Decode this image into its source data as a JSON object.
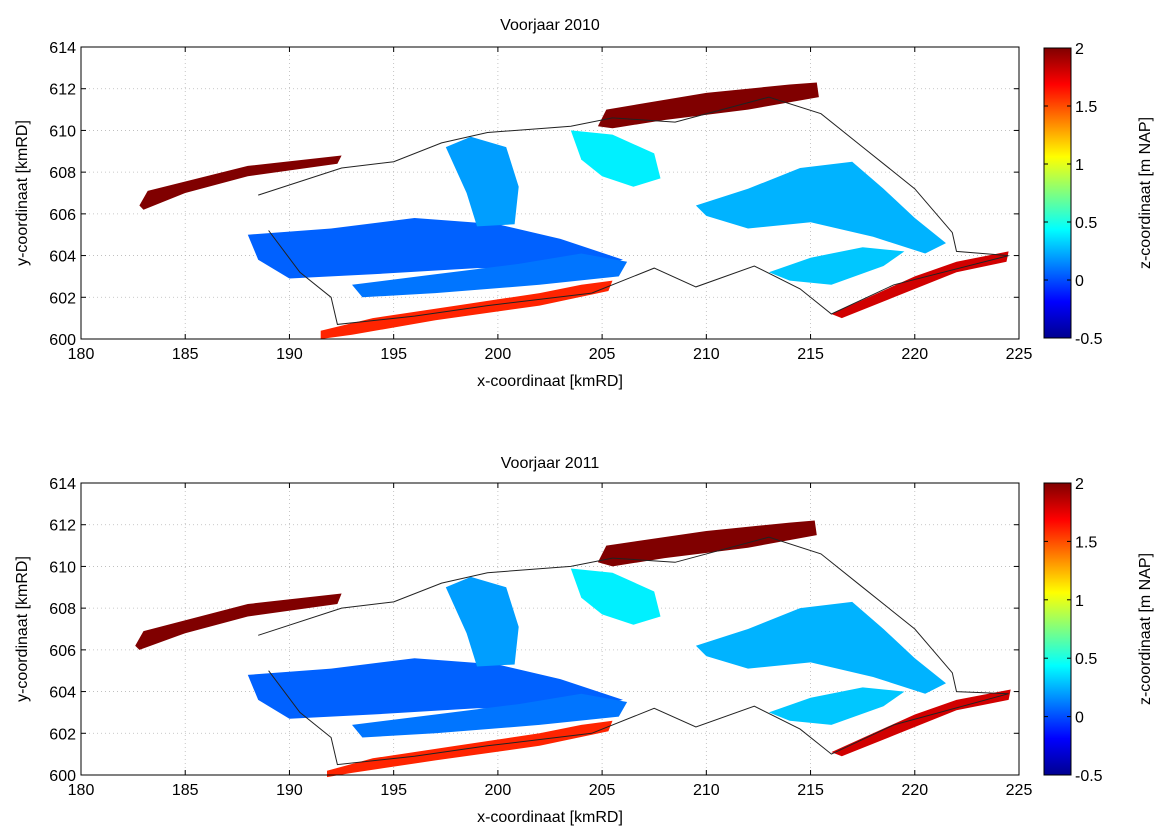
{
  "chart_data": [
    {
      "type": "heatmap",
      "title": "Voorjaar 2010",
      "xlabel": "x-coordinaat [kmRD]",
      "ylabel": "y-coordinaat [kmRD]",
      "xlim": [
        180,
        225
      ],
      "ylim": [
        600,
        614
      ],
      "xticks": [
        180,
        185,
        190,
        195,
        200,
        205,
        210,
        215,
        220,
        225
      ],
      "yticks": [
        600,
        602,
        604,
        606,
        608,
        610,
        612,
        614
      ],
      "grid": true,
      "colorbar": {
        "label": "z-coordinaat [m NAP]",
        "range": [
          -0.5,
          2
        ],
        "ticks": [
          -0.5,
          0,
          0.5,
          1,
          1.5,
          2
        ],
        "colormap": "jet"
      },
      "regions": [
        {
          "name": "west-dune",
          "z": 2.0,
          "points": [
            [
              182.8,
              606.4
            ],
            [
              183.2,
              607.1
            ],
            [
              188,
              608.3
            ],
            [
              192.5,
              608.8
            ],
            [
              192.3,
              608.4
            ],
            [
              188,
              607.8
            ],
            [
              185,
              607
            ],
            [
              183,
              606.2
            ]
          ]
        },
        {
          "name": "north-dune",
          "z": 2.0,
          "points": [
            [
              204.8,
              610.2
            ],
            [
              205.2,
              611
            ],
            [
              210,
              611.8
            ],
            [
              214,
              612.2
            ],
            [
              215.3,
              612.3
            ],
            [
              215.4,
              611.6
            ],
            [
              212,
              611
            ],
            [
              208,
              610.5
            ],
            [
              205.5,
              610.1
            ]
          ]
        },
        {
          "name": "south-dune-east",
          "z": 1.8,
          "points": [
            [
              216,
              601.2
            ],
            [
              218,
              602.1
            ],
            [
              220,
              603
            ],
            [
              222,
              603.7
            ],
            [
              224.5,
              604.2
            ],
            [
              224.4,
              603.7
            ],
            [
              222,
              603.2
            ],
            [
              219,
              602
            ],
            [
              216.5,
              601.0
            ]
          ]
        },
        {
          "name": "south-dune-west",
          "z": 1.6,
          "points": [
            [
              191.5,
              600.4
            ],
            [
              194,
              601
            ],
            [
              198,
              601.6
            ],
            [
              202,
              602.2
            ],
            [
              204,
              602.6
            ],
            [
              205.5,
              602.8
            ],
            [
              205.3,
              602.3
            ],
            [
              202,
              601.6
            ],
            [
              197,
              600.9
            ],
            [
              193,
              600.2
            ],
            [
              191.5,
              600.0
            ]
          ]
        },
        {
          "name": "flat-west",
          "z": 0.05,
          "points": [
            [
              188,
              605
            ],
            [
              192,
              605.3
            ],
            [
              196,
              605.8
            ],
            [
              200,
              605.5
            ],
            [
              203,
              604.8
            ],
            [
              206,
              603.8
            ],
            [
              204,
              603.3
            ],
            [
              199,
              603.4
            ],
            [
              194,
              603.1
            ],
            [
              190,
              602.9
            ],
            [
              188.5,
              603.8
            ]
          ]
        },
        {
          "name": "flat-center",
          "z": 0.2,
          "points": [
            [
              197.5,
              609.2
            ],
            [
              198.5,
              607
            ],
            [
              199,
              605.4
            ],
            [
              200.8,
              605.5
            ],
            [
              201,
              607.3
            ],
            [
              200.4,
              609.2
            ],
            [
              198.7,
              609.7
            ]
          ]
        },
        {
          "name": "flat-northcenter",
          "z": 0.4,
          "points": [
            [
              203.5,
              610
            ],
            [
              204,
              608.6
            ],
            [
              205,
              607.8
            ],
            [
              206.5,
              607.3
            ],
            [
              207.8,
              607.7
            ],
            [
              207.5,
              608.9
            ],
            [
              205.5,
              609.8
            ]
          ]
        },
        {
          "name": "flat-east",
          "z": 0.25,
          "points": [
            [
              209.5,
              606.4
            ],
            [
              212,
              607.2
            ],
            [
              214.5,
              608.2
            ],
            [
              217,
              608.5
            ],
            [
              218.5,
              607.2
            ],
            [
              220,
              605.8
            ],
            [
              221.5,
              604.6
            ],
            [
              220.5,
              604.1
            ],
            [
              218,
              604.9
            ],
            [
              215,
              605.6
            ],
            [
              212,
              605.3
            ],
            [
              210,
              605.9
            ]
          ]
        },
        {
          "name": "flat-south",
          "z": 0.1,
          "points": [
            [
              193,
              602.6
            ],
            [
              197,
              603.1
            ],
            [
              201,
              603.6
            ],
            [
              204,
              604.1
            ],
            [
              206.2,
              603.7
            ],
            [
              205.8,
              603
            ],
            [
              202,
              602.6
            ],
            [
              197,
              602.2
            ],
            [
              193.5,
              602.0
            ]
          ]
        },
        {
          "name": "flat-southeast",
          "z": 0.3,
          "points": [
            [
              213,
              603.2
            ],
            [
              215,
              603.9
            ],
            [
              217.5,
              604.4
            ],
            [
              219.5,
              604.2
            ],
            [
              218.5,
              603.5
            ],
            [
              216,
              602.6
            ],
            [
              214,
              602.8
            ]
          ]
        }
      ],
      "boundary": [
        [
          188.5,
          606.9
        ],
        [
          192.5,
          608.2
        ],
        [
          195,
          608.5
        ],
        [
          197.3,
          609.4
        ],
        [
          199.5,
          609.9
        ],
        [
          203.5,
          610.2
        ],
        [
          205.5,
          610.6
        ],
        [
          208.5,
          610.4
        ],
        [
          213,
          611.6
        ],
        [
          215.5,
          610.8
        ],
        [
          217.5,
          609.2
        ],
        [
          220,
          607.2
        ],
        [
          221.8,
          605.1
        ],
        [
          222,
          604.2
        ],
        [
          224.5,
          604.0
        ],
        [
          219,
          602.6
        ],
        [
          216,
          601.2
        ],
        [
          214.5,
          602.4
        ],
        [
          212.3,
          603.5
        ],
        [
          209.5,
          602.5
        ],
        [
          207.5,
          603.4
        ],
        [
          204.5,
          602.2
        ],
        [
          199.5,
          601.6
        ],
        [
          196,
          601.1
        ],
        [
          192.3,
          600.7
        ],
        [
          192.0,
          602.0
        ],
        [
          190.5,
          603.2
        ],
        [
          189,
          605.2
        ]
      ]
    },
    {
      "type": "heatmap",
      "title": "Voorjaar 2011",
      "xlabel": "x-coordinaat [kmRD]",
      "ylabel": "y-coordinaat [kmRD]",
      "xlim": [
        180,
        225
      ],
      "ylim": [
        600,
        614
      ],
      "xticks": [
        180,
        185,
        190,
        195,
        200,
        205,
        210,
        215,
        220,
        225
      ],
      "yticks": [
        600,
        602,
        604,
        606,
        608,
        610,
        612,
        614
      ],
      "grid": true,
      "colorbar": {
        "label": "z-coordinaat [m NAP]",
        "range": [
          -0.5,
          2
        ],
        "ticks": [
          -0.5,
          0,
          0.5,
          1,
          1.5,
          2
        ],
        "colormap": "jet"
      },
      "regions": [
        {
          "name": "west-dune",
          "z": 2.0,
          "points": [
            [
              182.6,
              606.2
            ],
            [
              183,
              606.9
            ],
            [
              188,
              608.2
            ],
            [
              192.5,
              608.7
            ],
            [
              192.3,
              608.2
            ],
            [
              188,
              607.6
            ],
            [
              185,
              606.8
            ],
            [
              182.8,
              606.0
            ]
          ]
        },
        {
          "name": "north-dune",
          "z": 2.0,
          "points": [
            [
              204.8,
              610.2
            ],
            [
              205.2,
              611
            ],
            [
              210,
              611.7
            ],
            [
              214,
              612.1
            ],
            [
              215.2,
              612.2
            ],
            [
              215.3,
              611.5
            ],
            [
              212,
              610.9
            ],
            [
              208,
              610.4
            ],
            [
              205.5,
              610.0
            ]
          ]
        },
        {
          "name": "south-dune-east",
          "z": 1.8,
          "points": [
            [
              216,
              601.1
            ],
            [
              218,
              602.0
            ],
            [
              220,
              602.9
            ],
            [
              222,
              603.6
            ],
            [
              224.6,
              604.1
            ],
            [
              224.5,
              603.6
            ],
            [
              222,
              603.1
            ],
            [
              219,
              601.9
            ],
            [
              216.5,
              600.9
            ]
          ]
        },
        {
          "name": "south-dune-west",
          "z": 1.6,
          "points": [
            [
              191.8,
              600.2
            ],
            [
              194,
              600.8
            ],
            [
              198,
              601.4
            ],
            [
              202,
              602.0
            ],
            [
              204,
              602.4
            ],
            [
              205.5,
              602.6
            ],
            [
              205.3,
              602.1
            ],
            [
              202,
              601.4
            ],
            [
              197,
              600.7
            ],
            [
              193,
              600.1
            ],
            [
              191.8,
              599.9
            ]
          ]
        },
        {
          "name": "flat-west",
          "z": 0.05,
          "points": [
            [
              188,
              604.8
            ],
            [
              192,
              605.1
            ],
            [
              196,
              605.6
            ],
            [
              200,
              605.3
            ],
            [
              203,
              604.6
            ],
            [
              206,
              603.6
            ],
            [
              204,
              603.1
            ],
            [
              199,
              603.2
            ],
            [
              194,
              602.9
            ],
            [
              190,
              602.7
            ],
            [
              188.5,
              603.6
            ]
          ]
        },
        {
          "name": "flat-center",
          "z": 0.2,
          "points": [
            [
              197.5,
              609.0
            ],
            [
              198.5,
              606.8
            ],
            [
              199,
              605.2
            ],
            [
              200.8,
              605.3
            ],
            [
              201,
              607.1
            ],
            [
              200.4,
              609.0
            ],
            [
              198.7,
              609.5
            ]
          ]
        },
        {
          "name": "flat-northcenter",
          "z": 0.4,
          "points": [
            [
              203.5,
              609.9
            ],
            [
              204,
              608.5
            ],
            [
              205,
              607.7
            ],
            [
              206.5,
              607.2
            ],
            [
              207.8,
              607.6
            ],
            [
              207.5,
              608.8
            ],
            [
              205.5,
              609.7
            ]
          ]
        },
        {
          "name": "flat-east",
          "z": 0.25,
          "points": [
            [
              209.5,
              606.2
            ],
            [
              212,
              607.0
            ],
            [
              214.5,
              608.0
            ],
            [
              217,
              608.3
            ],
            [
              218.5,
              607.0
            ],
            [
              220,
              605.6
            ],
            [
              221.5,
              604.4
            ],
            [
              220.5,
              603.9
            ],
            [
              218,
              604.7
            ],
            [
              215,
              605.4
            ],
            [
              212,
              605.1
            ],
            [
              210,
              605.7
            ]
          ]
        },
        {
          "name": "flat-south",
          "z": 0.1,
          "points": [
            [
              193,
              602.4
            ],
            [
              197,
              602.9
            ],
            [
              201,
              603.4
            ],
            [
              204,
              603.9
            ],
            [
              206.2,
              603.5
            ],
            [
              205.8,
              602.8
            ],
            [
              202,
              602.4
            ],
            [
              197,
              602.0
            ],
            [
              193.5,
              601.8
            ]
          ]
        },
        {
          "name": "flat-southeast",
          "z": 0.3,
          "points": [
            [
              213,
              603.0
            ],
            [
              215,
              603.7
            ],
            [
              217.5,
              604.2
            ],
            [
              219.5,
              604.0
            ],
            [
              218.5,
              603.3
            ],
            [
              216,
              602.4
            ],
            [
              214,
              602.6
            ]
          ]
        }
      ],
      "boundary": [
        [
          188.5,
          606.7
        ],
        [
          192.5,
          608.0
        ],
        [
          195,
          608.3
        ],
        [
          197.3,
          609.2
        ],
        [
          199.5,
          609.7
        ],
        [
          203.5,
          610.0
        ],
        [
          205.5,
          610.4
        ],
        [
          208.5,
          610.2
        ],
        [
          213,
          611.4
        ],
        [
          215.5,
          610.6
        ],
        [
          217.5,
          609.0
        ],
        [
          220,
          607.0
        ],
        [
          221.8,
          604.9
        ],
        [
          222,
          604.0
        ],
        [
          224.5,
          603.9
        ],
        [
          219,
          602.4
        ],
        [
          216,
          601.0
        ],
        [
          214.5,
          602.2
        ],
        [
          212.3,
          603.3
        ],
        [
          209.5,
          602.3
        ],
        [
          207.5,
          603.2
        ],
        [
          204.5,
          602.0
        ],
        [
          199.5,
          601.4
        ],
        [
          196,
          600.9
        ],
        [
          192.3,
          600.5
        ],
        [
          192.0,
          601.8
        ],
        [
          190.5,
          603.0
        ],
        [
          189,
          605.0
        ]
      ]
    }
  ]
}
